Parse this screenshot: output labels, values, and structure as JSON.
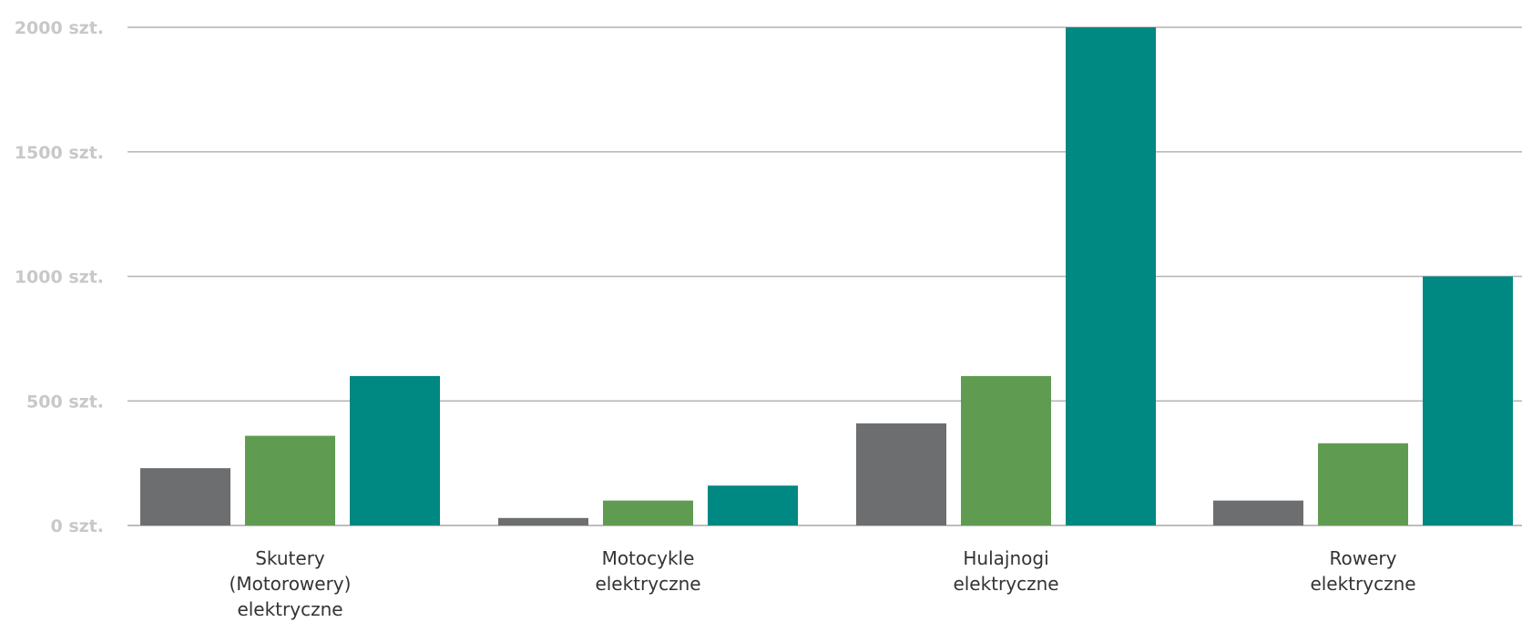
{
  "chart_data": {
    "type": "bar",
    "categories": [
      [
        "Skutery",
        "(Motorowery)",
        "elektryczne"
      ],
      [
        "Motocykle",
        "elektryczne"
      ],
      [
        "Hulajnogi",
        "elektryczne"
      ],
      [
        "Rowery",
        "elektryczne"
      ]
    ],
    "series": [
      {
        "color": "#6d6e70",
        "values": [
          230,
          30,
          410,
          100
        ]
      },
      {
        "color": "#5f9c51",
        "values": [
          360,
          100,
          600,
          330
        ]
      },
      {
        "color": "#008882",
        "values": [
          600,
          160,
          2000,
          1000
        ]
      }
    ],
    "yticks": [
      0,
      500,
      1000,
      1500,
      2000
    ],
    "ytick_labels": [
      "0 szt.",
      "500 szt.",
      "1000 szt.",
      "1500 szt.",
      "2000 szt."
    ],
    "ylim": [
      0,
      2000
    ],
    "grid": true,
    "title": "",
    "xlabel": "",
    "ylabel": ""
  }
}
